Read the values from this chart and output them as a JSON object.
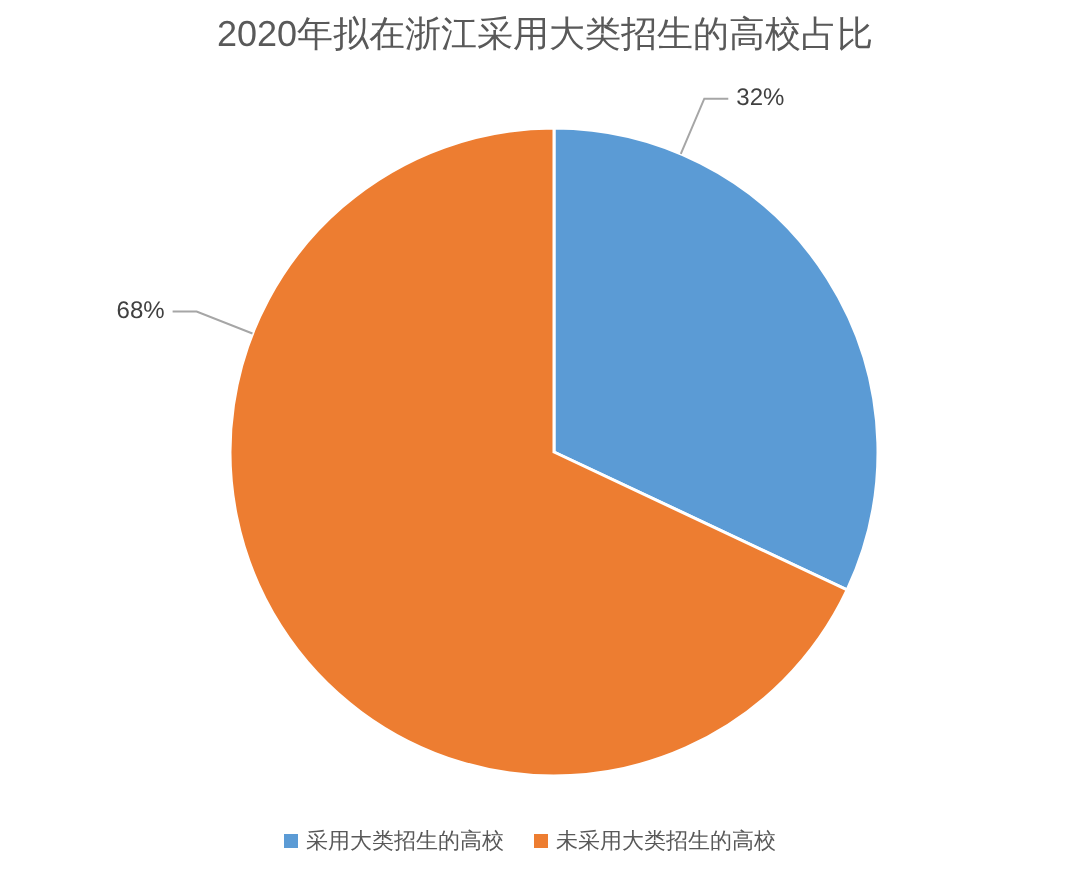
{
  "chart_data": {
    "type": "pie",
    "title": "2020年拟在浙江采用大类招生的高校占比",
    "categories": [
      "采用大类招生的高校",
      "未采用大类招生的高校"
    ],
    "values": [
      32,
      68
    ],
    "colors": [
      "#5b9bd5",
      "#ed7d31"
    ],
    "value_labels": [
      "32%",
      "68%"
    ],
    "legend": "bottom"
  }
}
